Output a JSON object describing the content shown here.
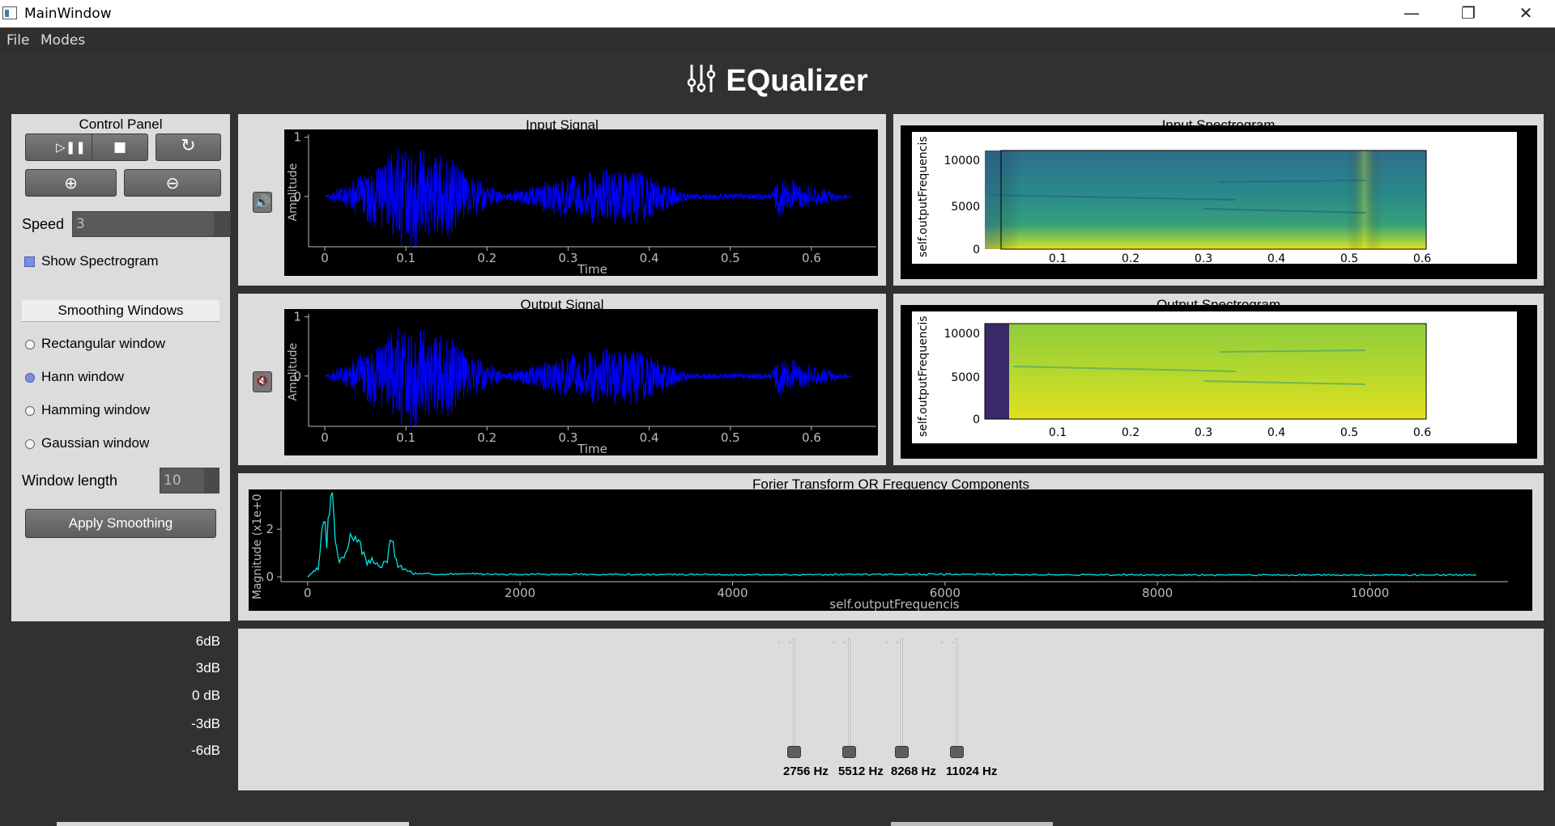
{
  "window": {
    "title": "MainWindow"
  },
  "menu": {
    "items": [
      "File",
      "Modes"
    ]
  },
  "app_title": "EQualizer",
  "control_panel": {
    "title": "Control Panel",
    "speed_label": "Speed",
    "speed_value": "3",
    "show_spectrogram_label": "Show Spectrogram",
    "show_spectrogram_checked": true,
    "smoothing_header": "Smoothing Windows",
    "windows": [
      {
        "label": "Rectangular window",
        "selected": false
      },
      {
        "label": "Hann window",
        "selected": true
      },
      {
        "label": "Hamming window",
        "selected": false
      },
      {
        "label": "Gaussian window",
        "selected": false
      }
    ],
    "window_length_label": "Window length",
    "window_length_value": "10",
    "apply_label": "Apply Smoothing"
  },
  "input_signal": {
    "title": "Input Signal",
    "xlabel": "Time",
    "ylabel": "Amplitude",
    "xticks": [
      "0",
      "0.1",
      "0.2",
      "0.3",
      "0.4",
      "0.5",
      "0.6"
    ],
    "yticks": [
      "1",
      "0"
    ],
    "audio_icon": "speaker-on-icon"
  },
  "output_signal": {
    "title": "Output Signal",
    "xlabel": "Time",
    "ylabel": "Amplitude",
    "xticks": [
      "0",
      "0.1",
      "0.2",
      "0.3",
      "0.4",
      "0.5",
      "0.6"
    ],
    "yticks": [
      "1",
      "0"
    ],
    "audio_icon": "speaker-mute-icon"
  },
  "input_spectrogram": {
    "title": "Input Spectrogram",
    "ylabel": "self.outputFrequencis",
    "yticks": [
      "10000",
      "5000",
      "0"
    ],
    "xticks": [
      "0.1",
      "0.2",
      "0.3",
      "0.4",
      "0.5",
      "0.6"
    ]
  },
  "output_spectrogram": {
    "title": "Output Spectrogram",
    "ylabel": "self.outputFrequencis",
    "yticks": [
      "10000",
      "5000",
      "0"
    ],
    "xticks": [
      "0.1",
      "0.2",
      "0.3",
      "0.4",
      "0.5",
      "0.6"
    ]
  },
  "fourier": {
    "title": "Forier Transform OR Frequency Components",
    "xlabel": "self.outputFrequencis",
    "ylabel": "Magnitude (x1e+0",
    "xticks": [
      "0",
      "2000",
      "4000",
      "6000",
      "8000",
      "10000"
    ],
    "yticks": [
      "2",
      "0"
    ]
  },
  "equalizer": {
    "db_labels": [
      "6dB",
      "3dB",
      "0 dB",
      "-3dB",
      "-6dB"
    ],
    "bands": [
      {
        "label": "2756 Hz",
        "gain_db": -6
      },
      {
        "label": "5512 Hz",
        "gain_db": -6
      },
      {
        "label": "8268 Hz",
        "gain_db": -6
      },
      {
        "label": "11024 Hz",
        "gain_db": -6
      }
    ]
  },
  "colors": {
    "waveform": "#0000ff",
    "fft": "#00e5e5",
    "panel": "#dcdcdc",
    "background": "#313131"
  },
  "chart_data": [
    {
      "type": "line",
      "title": "Input Signal",
      "xlabel": "Time",
      "ylabel": "Amplitude",
      "xlim": [
        -0.02,
        0.68
      ],
      "ylim": [
        -0.85,
        1.05
      ],
      "x": [
        0,
        0.07,
        0.1,
        0.15,
        0.22,
        0.32,
        0.38,
        0.45,
        0.55,
        0.56,
        0.65
      ],
      "y": [
        0,
        0.6,
        0.95,
        0.7,
        0.05,
        0.45,
        0.5,
        0.05,
        0.05,
        0.35,
        0
      ]
    },
    {
      "type": "line",
      "title": "Output Signal",
      "xlabel": "Time",
      "ylabel": "Amplitude",
      "xlim": [
        -0.02,
        0.68
      ],
      "ylim": [
        -0.85,
        1.05
      ],
      "x": [
        0,
        0.07,
        0.1,
        0.15,
        0.22,
        0.32,
        0.38,
        0.45,
        0.55,
        0.56,
        0.65
      ],
      "y": [
        0,
        0.6,
        0.95,
        0.7,
        0.05,
        0.45,
        0.5,
        0.05,
        0.05,
        0.35,
        0
      ]
    },
    {
      "type": "line",
      "title": "Forier Transform OR Frequency Components",
      "xlabel": "self.outputFrequencis",
      "ylabel": "Magnitude (x1e+0",
      "xlim": [
        -250,
        11300
      ],
      "ylim": [
        -0.2,
        3.6
      ],
      "x": [
        0,
        100,
        150,
        180,
        220,
        260,
        300,
        370,
        450,
        560,
        620,
        700,
        750,
        790,
        850,
        1000,
        2000,
        4000,
        6000,
        8000,
        10000,
        11000
      ],
      "y": [
        0,
        0.3,
        2.3,
        1.2,
        3.4,
        1.5,
        0.6,
        1.1,
        1.7,
        0.5,
        0.6,
        0.4,
        0.6,
        1.5,
        0.4,
        0.1,
        0.08,
        0.06,
        0.08,
        0.05,
        0.05,
        0.05
      ]
    }
  ]
}
